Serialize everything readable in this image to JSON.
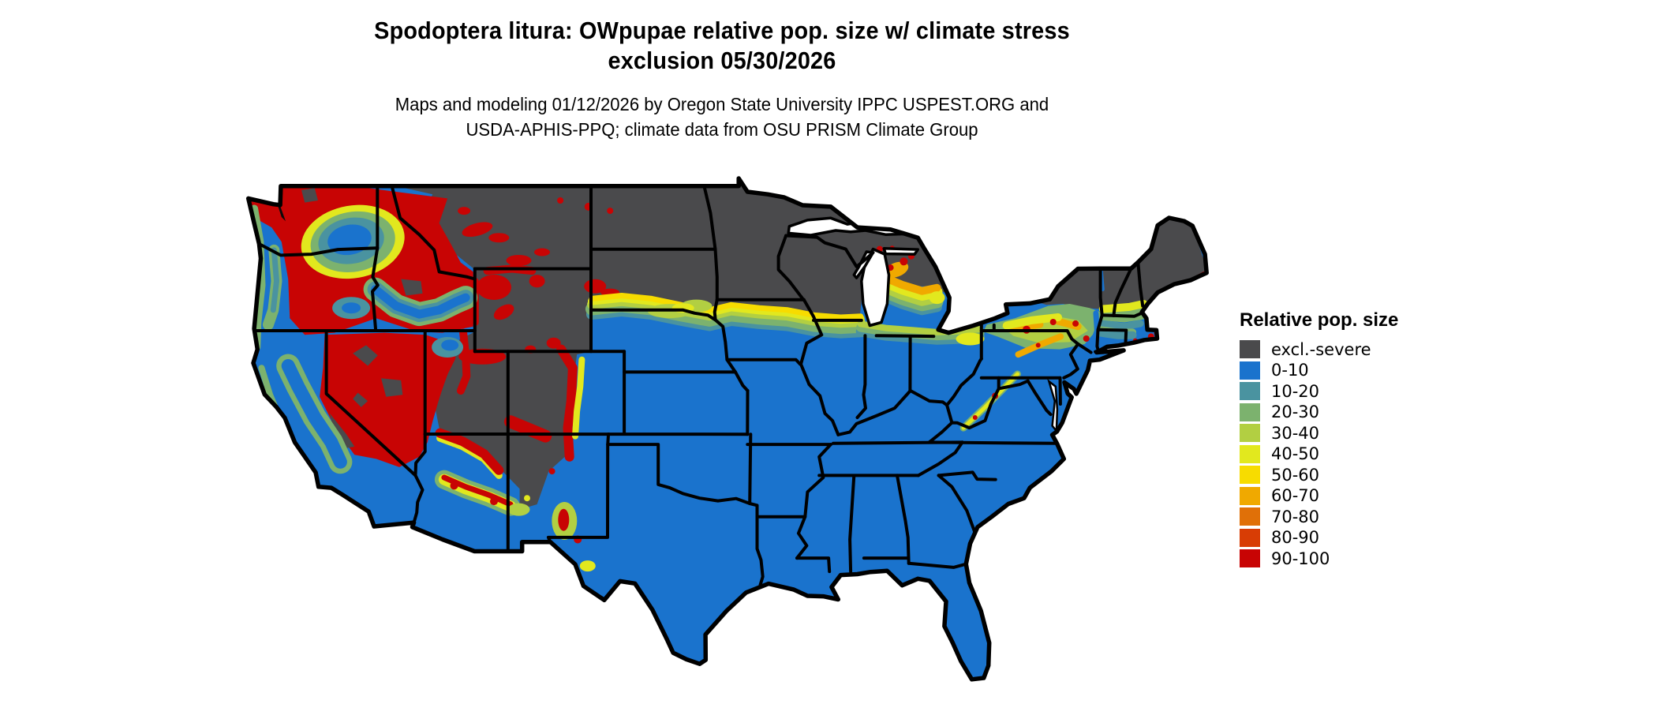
{
  "figure": {
    "title_lines": [
      "Spodoptera litura: OWpupae relative pop. size w/ climate stress",
      "exclusion 05/30/2026"
    ],
    "subtitle_lines": [
      "Maps and modeling 01/12/2026 by Oregon State University IPPC USPEST.ORG and",
      "USDA-APHIS-PPQ; climate data from OSU PRISM Climate Group"
    ]
  },
  "map": {
    "region": "Contiguous United States",
    "water_color": "#ffffff",
    "border_color": "#000000"
  },
  "legend": {
    "title": "Relative pop. size",
    "items": [
      {
        "label": "excl.-severe",
        "color": "#4a4a4c"
      },
      {
        "label": "0-10",
        "color": "#1a73cd"
      },
      {
        "label": "10-20",
        "color": "#4a93a0"
      },
      {
        "label": "20-30",
        "color": "#7cb26e"
      },
      {
        "label": "30-40",
        "color": "#b2cf42"
      },
      {
        "label": "40-50",
        "color": "#e2e81e"
      },
      {
        "label": "50-60",
        "color": "#f7dc00"
      },
      {
        "label": "60-70",
        "color": "#f0a900"
      },
      {
        "label": "70-80",
        "color": "#e07008"
      },
      {
        "label": "80-90",
        "color": "#d83d05"
      },
      {
        "label": "90-100",
        "color": "#c80404"
      }
    ]
  }
}
